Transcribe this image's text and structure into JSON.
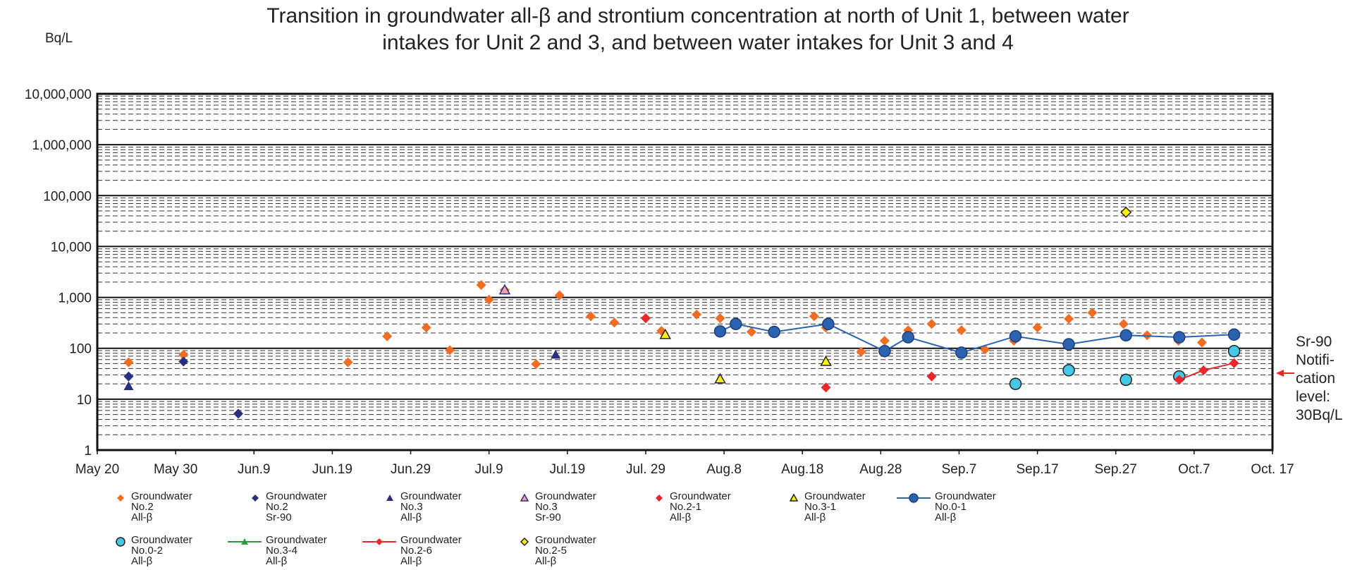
{
  "chart_data": {
    "type": "scatter",
    "title": "Transition in groundwater all-β and strontium concentration at north of Unit 1, between water\nintakes for Unit 2 and 3, and between water intakes for Unit 3 and 4",
    "y_label": "Bq/L",
    "annotation": "Sr-90\nNotifi-\ncation\nlevel:\n30Bq/L",
    "y_scale": "log",
    "grid": true,
    "xlim": [
      0,
      150
    ],
    "xticks": [
      {
        "value": 0,
        "label": "May 20"
      },
      {
        "value": 10,
        "label": "May 30"
      },
      {
        "value": 20,
        "label": "Jun.9"
      },
      {
        "value": 30,
        "label": "Jun.19"
      },
      {
        "value": 40,
        "label": "Jun.29"
      },
      {
        "value": 50,
        "label": "Jul.9"
      },
      {
        "value": 60,
        "label": "Jul.19"
      },
      {
        "value": 70,
        "label": "Jul. 29"
      },
      {
        "value": 80,
        "label": "Aug.8"
      },
      {
        "value": 90,
        "label": "Aug.18"
      },
      {
        "value": 100,
        "label": "Aug.28"
      },
      {
        "value": 110,
        "label": "Sep.7"
      },
      {
        "value": 120,
        "label": "Sep.17"
      },
      {
        "value": 130,
        "label": "Sep.27"
      },
      {
        "value": 140,
        "label": "Oct.7"
      },
      {
        "value": 150,
        "label": "Oct. 17"
      }
    ],
    "ylim": [
      1,
      10000000
    ],
    "yticks": [
      1,
      10,
      100,
      {
        "value": 1000,
        "label": "1,000"
      },
      {
        "value": 10000,
        "label": "10,000"
      },
      {
        "value": 100000,
        "label": "100,000"
      },
      {
        "value": 1000000,
        "label": "1,000,000"
      },
      {
        "value": 10000000,
        "label": "10,000,000"
      }
    ],
    "series": [
      {
        "name": "Groundwater\nNo.2\nAll-β",
        "color": "#f26c22",
        "edge": null,
        "marker": "diamond",
        "line": false,
        "x": [
          4,
          11,
          32,
          37,
          42,
          45,
          49,
          50,
          52,
          56,
          59,
          63,
          66,
          70,
          72,
          76.5,
          79.5,
          83.5,
          91.5,
          93,
          97.5,
          100.5,
          103.5,
          106.5,
          110.3,
          113.3,
          117,
          120,
          124,
          127,
          131,
          134,
          138,
          141
        ],
        "values": [
          53,
          75,
          53,
          172,
          255,
          92,
          1750,
          900,
          1400,
          49,
          1100,
          425,
          320,
          390,
          220,
          460,
          390,
          210,
          425,
          255,
          85,
          141,
          226,
          300,
          226,
          95,
          141,
          255,
          380,
          500,
          300,
          180,
          141,
          130
        ]
      },
      {
        "name": "Groundwater\nNo.2\nSr-90",
        "color": "#2b2f7f",
        "edge": null,
        "marker": "diamond",
        "line": false,
        "x": [
          4,
          11,
          18
        ],
        "values": [
          28,
          55,
          5.2
        ]
      },
      {
        "name": "Groundwater\nNo.3\nAll-β",
        "color": "#2b2f7f",
        "edge": null,
        "marker": "triangle",
        "line": false,
        "x": [
          4,
          52,
          58.5
        ],
        "values": [
          18,
          1400,
          75
        ]
      },
      {
        "name": "Groundwater\nNo.3\nSr-90",
        "color": "#f4a0b0",
        "edge": "#2b2f7f",
        "marker": "triangle",
        "line": false,
        "x": [
          52
        ],
        "values": [
          1400
        ]
      },
      {
        "name": "Groundwater\nNo.2-1\nAll-β",
        "color": "#e8262b",
        "edge": null,
        "marker": "diamond",
        "line": false,
        "x": [
          70,
          93,
          106.5
        ],
        "values": [
          390,
          17,
          28
        ]
      },
      {
        "name": "Groundwater\nNo.3-1\nAll-β",
        "color": "#fff200",
        "edge": "#222",
        "marker": "triangle",
        "line": false,
        "x": [
          72.5,
          79.5,
          93
        ],
        "values": [
          186,
          25,
          55
        ]
      },
      {
        "name": "Groundwater\nNo.0-1\nAll-β",
        "color": "#2a62b0",
        "edge": "#1b3f7a",
        "marker": "circle",
        "line": true,
        "x": [
          79.5,
          81.5,
          86.4,
          93.3,
          100.5,
          103.5,
          110.3,
          117.2,
          124,
          131.3,
          138.1,
          145.1
        ],
        "values": [
          215,
          300,
          210,
          300,
          88,
          165,
          82,
          172,
          120,
          180,
          165,
          186
        ]
      },
      {
        "name": "Groundwater\nNo.0-2\nAll-β",
        "color": "#45c8e6",
        "edge": "#222",
        "marker": "circle",
        "line": false,
        "x": [
          117.2,
          124,
          131.3,
          138.1,
          145.1
        ],
        "values": [
          20,
          37,
          24,
          28,
          88
        ]
      },
      {
        "name": "Groundwater\nNo.3-4\nAll-β",
        "color": "#2e9a3d",
        "edge": null,
        "marker": "triangle",
        "line": true,
        "x": [],
        "values": []
      },
      {
        "name": "Groundwater\nNo.2-6\nAll-β",
        "color": "#e8262b",
        "edge": null,
        "marker": "diamond",
        "line": true,
        "x": [
          138.1,
          141.2,
          145.1
        ],
        "values": [
          24,
          37,
          51
        ]
      },
      {
        "name": "Groundwater\nNo.2-5\nAll-β",
        "color": "#fff200",
        "edge": "#222",
        "marker": "diamond",
        "line": false,
        "x": [
          131.3
        ],
        "values": [
          47000
        ]
      }
    ]
  }
}
